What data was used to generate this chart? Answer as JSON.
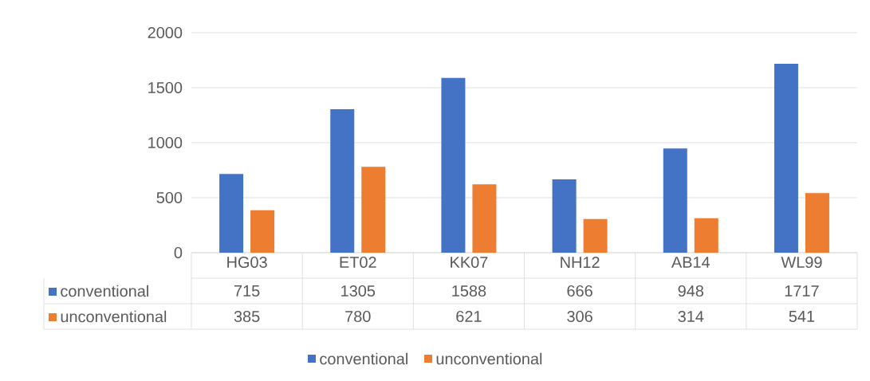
{
  "chart_data": {
    "type": "bar",
    "categories": [
      "HG03",
      "ET02",
      "KK07",
      "NH12",
      "AB14",
      "WL99"
    ],
    "series": [
      {
        "name": "conventional",
        "color": "#4472c4",
        "values": [
          715,
          1305,
          1588,
          666,
          948,
          1717
        ]
      },
      {
        "name": "unconventional",
        "color": "#ed7d31",
        "values": [
          385,
          780,
          621,
          306,
          314,
          541
        ]
      }
    ],
    "ylim": [
      0,
      2000
    ],
    "yticks": [
      0,
      500,
      1000,
      1500,
      2000
    ],
    "grid": "y",
    "legend": "bottom",
    "data_labels": true
  }
}
